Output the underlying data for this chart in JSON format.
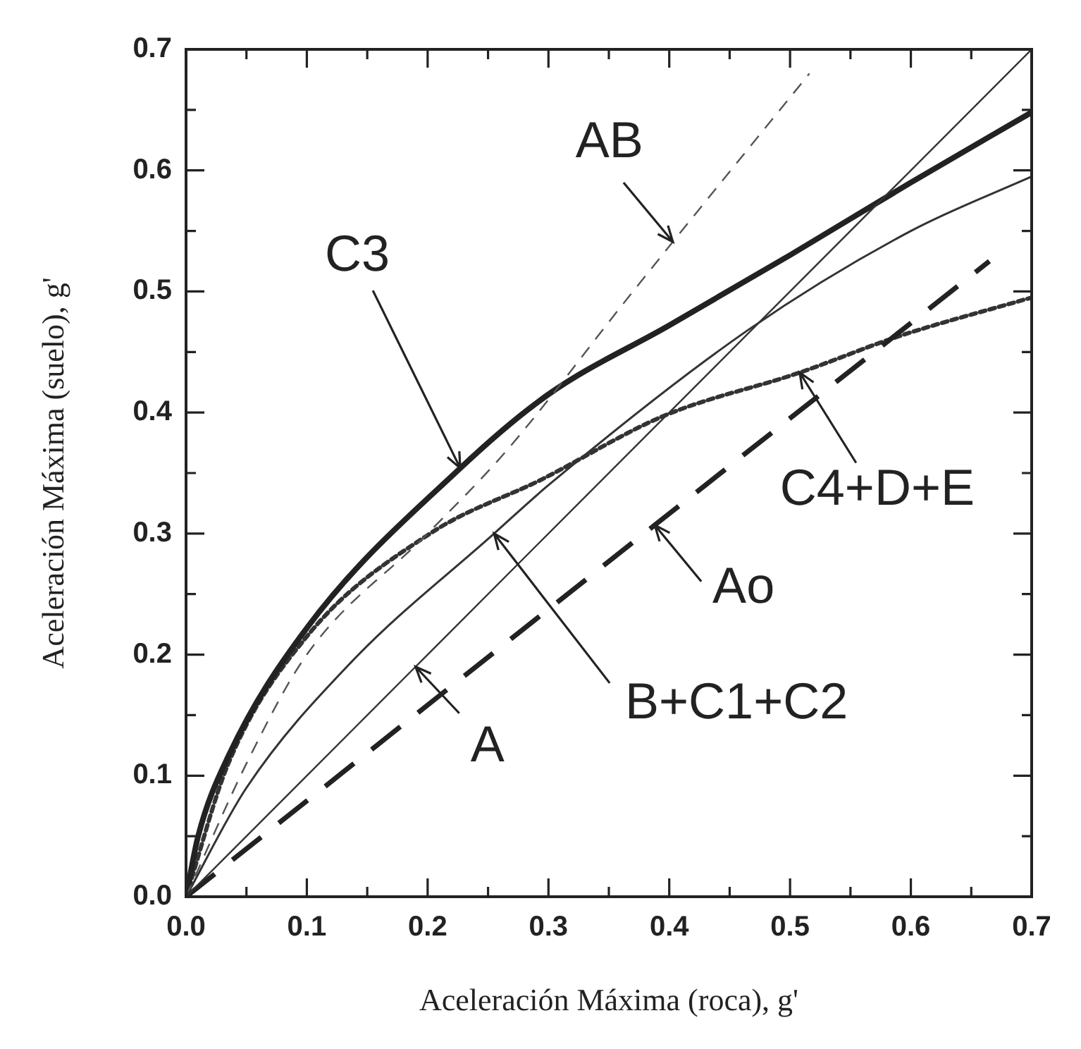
{
  "chart_data": {
    "type": "line",
    "xlabel": "Aceleración Máxima (roca), g'",
    "ylabel": "Aceleración Máxima (suelo), g'",
    "xlim": [
      0,
      0.7
    ],
    "ylim": [
      0,
      0.7
    ],
    "xticks": [
      {
        "value": 0,
        "label": "0.0"
      },
      {
        "value": 0.05,
        "label": null
      },
      {
        "value": 0.1,
        "label": "0.1"
      },
      {
        "value": 0.15,
        "label": null
      },
      {
        "value": 0.2,
        "label": "0.2"
      },
      {
        "value": 0.25,
        "label": null
      },
      {
        "value": 0.3,
        "label": "0.3"
      },
      {
        "value": 0.35,
        "label": null
      },
      {
        "value": 0.4,
        "label": "0.4"
      },
      {
        "value": 0.45,
        "label": null
      },
      {
        "value": 0.5,
        "label": "0.5"
      },
      {
        "value": 0.55,
        "label": null
      },
      {
        "value": 0.6,
        "label": "0.6"
      },
      {
        "value": 0.65,
        "label": null
      },
      {
        "value": 0.7,
        "label": "0.7"
      }
    ],
    "yticks": [
      {
        "value": 0,
        "label": "0.0"
      },
      {
        "value": 0.05,
        "label": null
      },
      {
        "value": 0.1,
        "label": "0.1"
      },
      {
        "value": 0.15,
        "label": null
      },
      {
        "value": 0.2,
        "label": "0.2"
      },
      {
        "value": 0.25,
        "label": null
      },
      {
        "value": 0.3,
        "label": "0.3"
      },
      {
        "value": 0.35,
        "label": null
      },
      {
        "value": 0.4,
        "label": "0.4"
      },
      {
        "value": 0.45,
        "label": null
      },
      {
        "value": 0.5,
        "label": "0.5"
      },
      {
        "value": 0.55,
        "label": null
      },
      {
        "value": 0.6,
        "label": "0.6"
      },
      {
        "value": 0.65,
        "label": null
      },
      {
        "value": 0.7,
        "label": "0.7"
      }
    ],
    "grid": false,
    "legend": false,
    "marker": "none",
    "annotations": [
      {
        "text": "A",
        "x": 0.19,
        "y": 0.19
      },
      {
        "text": "Ao",
        "x": 0.388,
        "y": 0.307
      },
      {
        "text": "AB",
        "x": 0.403,
        "y": 0.541
      },
      {
        "text": "C3",
        "x": 0.227,
        "y": 0.354
      },
      {
        "text": "B+C1+C2",
        "x": 0.255,
        "y": 0.3
      },
      {
        "text": "C4+D+E",
        "x": 0.508,
        "y": 0.433
      }
    ],
    "series": [
      {
        "color": "#333333",
        "line_style": "solid",
        "x": [
          0,
          0.19,
          0.7
        ],
        "values": [
          0,
          0.19,
          0.7
        ]
      },
      {
        "color": "#222222",
        "line_style": "dashed",
        "x": [
          0,
          0.388,
          0.665
        ],
        "values": [
          0,
          0.307,
          0.525
        ]
      },
      {
        "color": "#555555",
        "line_style": "dashed",
        "x": [
          0,
          0.05,
          0.1,
          0.2,
          0.264,
          0.366,
          0.403,
          0.516
        ],
        "values": [
          0,
          0.11,
          0.2,
          0.3,
          0.367,
          0.495,
          0.541,
          0.68
        ]
      },
      {
        "color": "#222222",
        "line_style": "solid",
        "x": [
          0,
          0.01,
          0.035,
          0.1,
          0.227,
          0.3,
          0.4,
          0.5,
          0.6,
          0.7
        ],
        "values": [
          0,
          0.05,
          0.116,
          0.222,
          0.354,
          0.415,
          0.472,
          0.53,
          0.59,
          0.648
        ]
      },
      {
        "color": "#333333",
        "line_style": "solid",
        "x": [
          0,
          0.05,
          0.136,
          0.255,
          0.3,
          0.465,
          0.6,
          0.7
        ],
        "values": [
          0,
          0.09,
          0.193,
          0.3,
          0.34,
          0.468,
          0.55,
          0.595
        ]
      },
      {
        "color": "#333333",
        "line_style": "dotted",
        "x": [
          0,
          0.035,
          0.1,
          0.202,
          0.295,
          0.395,
          0.508,
          0.59,
          0.7
        ],
        "values": [
          0,
          0.11,
          0.215,
          0.3,
          0.345,
          0.397,
          0.433,
          0.463,
          0.495
        ]
      }
    ]
  }
}
